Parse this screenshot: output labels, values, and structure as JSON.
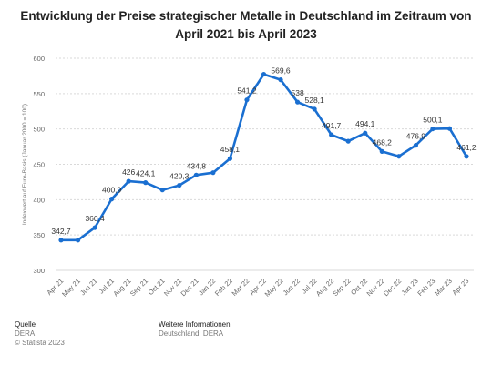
{
  "title": "Entwicklung der Preise strategischer Metalle in Deutschland im Zeitraum von April 2021 bis April 2023",
  "footer": {
    "source_label": "Quelle",
    "source_name": "DERA",
    "copyright": "© Statista 2023",
    "info_label": "Weitere Informationen:",
    "info_value": "Deutschland; DERA"
  },
  "chart_data": {
    "type": "line",
    "title": "Entwicklung der Preise strategischer Metalle in Deutschland im Zeitraum von April 2021 bis April 2023",
    "xlabel": "",
    "ylabel": "Indexwert auf Euro-Basis (Januar 2000 = 100)",
    "ylim": [
      300,
      600
    ],
    "yticks": [
      300,
      350,
      400,
      450,
      500,
      550,
      600
    ],
    "grid": true,
    "color": "#1a6fd1",
    "categories": [
      "Apr 21",
      "May 21",
      "Jun 21",
      "Jul 21",
      "Aug 21",
      "Sep 21",
      "Oct 21",
      "Nov 21",
      "Dec 21",
      "Jan 22",
      "Feb 22",
      "Mar 22",
      "Apr 22",
      "May 22",
      "Jun 22",
      "Jul 22",
      "Aug 22",
      "Sep 22",
      "Oct 22",
      "Nov 22",
      "Dec 22",
      "Jan 23",
      "Feb 23",
      "Mar 23",
      "Apr 23"
    ],
    "values": [
      342.7,
      342.7,
      360.4,
      400.9,
      426,
      424.1,
      413.7,
      420.3,
      434.8,
      438.2,
      458.1,
      541.2,
      577.4,
      569.6,
      538,
      528.1,
      491.7,
      482.7,
      494.1,
      468.2,
      461.3,
      476.9,
      500.1,
      500.6,
      461.2
    ],
    "labels": [
      "342,7",
      "",
      "360,4",
      "400,9",
      "426",
      "424,1",
      "",
      "420,3",
      "434,8",
      "",
      "458,1",
      "541,2",
      "",
      "569,6",
      "538",
      "528,1",
      "491,7",
      "",
      "494,1",
      "468,2",
      "",
      "476,9",
      "500,1",
      "",
      "461,2"
    ]
  }
}
